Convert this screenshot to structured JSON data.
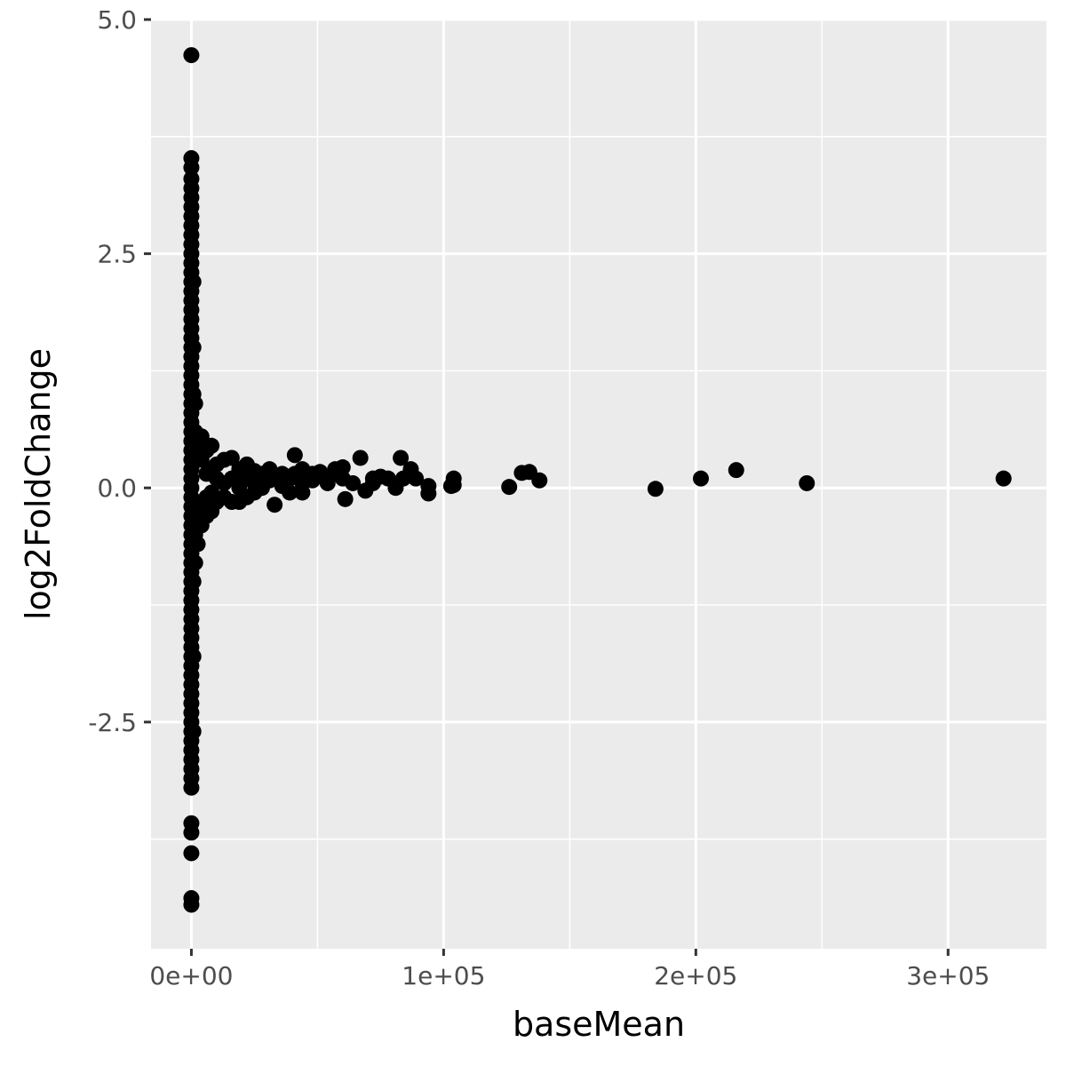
{
  "chart_data": {
    "type": "scatter",
    "title": "",
    "xlabel": "baseMean",
    "ylabel": "log2FoldChange",
    "xlim": [
      -16000,
      339000
    ],
    "ylim": [
      -4.92,
      5.0
    ],
    "x_ticks": [
      0,
      100000,
      200000,
      300000
    ],
    "x_tick_labels": [
      "0e+00",
      "1e+05",
      "2e+05",
      "3e+05"
    ],
    "y_ticks": [
      5.0,
      2.5,
      0.0,
      -2.5
    ],
    "y_tick_labels": [
      "5.0",
      "2.5",
      "0.0",
      "-2.5"
    ],
    "grid": true,
    "legend": "none",
    "colors": {
      "panel": "#ebebeb",
      "grid": "#ffffff",
      "point": "#000000",
      "tick": "#333333",
      "tick_text": "#4d4d4d"
    },
    "series": [
      {
        "points": [
          [
            0,
            4.62
          ],
          [
            0,
            3.52
          ],
          [
            0,
            3.42
          ],
          [
            0,
            3.3
          ],
          [
            0,
            3.2
          ],
          [
            0,
            3.1
          ],
          [
            0,
            3.0
          ],
          [
            0,
            2.9
          ],
          [
            0,
            2.8
          ],
          [
            0,
            2.7
          ],
          [
            0,
            2.6
          ],
          [
            0,
            2.5
          ],
          [
            0,
            2.4
          ],
          [
            0,
            2.3
          ],
          [
            0,
            2.2
          ],
          [
            0,
            2.1
          ],
          [
            0,
            2.0
          ],
          [
            0,
            1.9
          ],
          [
            0,
            1.8
          ],
          [
            0,
            1.7
          ],
          [
            0,
            1.6
          ],
          [
            0,
            1.5
          ],
          [
            0,
            1.4
          ],
          [
            0,
            1.3
          ],
          [
            0,
            1.2
          ],
          [
            0,
            1.1
          ],
          [
            0,
            1.0
          ],
          [
            0,
            0.9
          ],
          [
            0,
            0.8
          ],
          [
            0,
            0.7
          ],
          [
            0,
            0.6
          ],
          [
            0,
            0.5
          ],
          [
            0,
            0.4
          ],
          [
            0,
            0.3
          ],
          [
            0,
            0.2
          ],
          [
            0,
            0.1
          ],
          [
            0,
            0.0
          ],
          [
            0,
            -0.1
          ],
          [
            0,
            -0.2
          ],
          [
            0,
            -0.3
          ],
          [
            0,
            -0.4
          ],
          [
            0,
            -0.5
          ],
          [
            0,
            -0.6
          ],
          [
            0,
            -0.7
          ],
          [
            0,
            -0.8
          ],
          [
            0,
            -0.9
          ],
          [
            0,
            -1.0
          ],
          [
            0,
            -1.1
          ],
          [
            0,
            -1.2
          ],
          [
            0,
            -1.3
          ],
          [
            0,
            -1.4
          ],
          [
            0,
            -1.5
          ],
          [
            0,
            -1.6
          ],
          [
            0,
            -1.7
          ],
          [
            0,
            -1.8
          ],
          [
            0,
            -1.9
          ],
          [
            0,
            -2.0
          ],
          [
            0,
            -2.1
          ],
          [
            0,
            -2.2
          ],
          [
            0,
            -2.3
          ],
          [
            0,
            -2.4
          ],
          [
            0,
            -2.5
          ],
          [
            0,
            -2.6
          ],
          [
            0,
            -2.7
          ],
          [
            0,
            -2.8
          ],
          [
            0,
            -2.9
          ],
          [
            0,
            -3.0
          ],
          [
            0,
            -3.1
          ],
          [
            0,
            -3.2
          ],
          [
            0,
            -3.58
          ],
          [
            0,
            -3.68
          ],
          [
            0,
            -3.9
          ],
          [
            0,
            -4.38
          ],
          [
            0,
            -4.45
          ],
          [
            800,
            2.2
          ],
          [
            800,
            1.5
          ],
          [
            800,
            1.0
          ],
          [
            800,
            -1.0
          ],
          [
            800,
            -1.8
          ],
          [
            800,
            -2.6
          ],
          [
            1500,
            0.9
          ],
          [
            1500,
            0.6
          ],
          [
            1500,
            -0.5
          ],
          [
            1500,
            -0.8
          ],
          [
            2500,
            0.5
          ],
          [
            2500,
            0.3
          ],
          [
            2500,
            -0.3
          ],
          [
            2500,
            -0.6
          ],
          [
            4000,
            0.55
          ],
          [
            4000,
            0.3
          ],
          [
            4000,
            -0.2
          ],
          [
            4000,
            -0.4
          ],
          [
            6000,
            0.4
          ],
          [
            6000,
            0.15
          ],
          [
            6000,
            -0.1
          ],
          [
            6000,
            -0.3
          ],
          [
            8000,
            0.45
          ],
          [
            8000,
            0.2
          ],
          [
            8000,
            -0.05
          ],
          [
            8000,
            -0.25
          ],
          [
            10000,
            0.25
          ],
          [
            10000,
            0.1
          ],
          [
            10000,
            -0.15
          ],
          [
            13000,
            0.3
          ],
          [
            13000,
            0.05
          ],
          [
            13000,
            -0.1
          ],
          [
            16000,
            0.32
          ],
          [
            16000,
            0.1
          ],
          [
            16000,
            -0.15
          ],
          [
            19000,
            0.2
          ],
          [
            19000,
            0.0
          ],
          [
            19000,
            -0.15
          ],
          [
            22000,
            0.25
          ],
          [
            22000,
            0.1
          ],
          [
            22000,
            -0.1
          ],
          [
            25000,
            0.18
          ],
          [
            25000,
            0.05
          ],
          [
            25000,
            -0.05
          ],
          [
            28000,
            0.15
          ],
          [
            28000,
            0.0
          ],
          [
            31000,
            0.2
          ],
          [
            31000,
            0.08
          ],
          [
            33000,
            -0.18
          ],
          [
            36000,
            0.15
          ],
          [
            36000,
            0.02
          ],
          [
            39000,
            0.1
          ],
          [
            39000,
            -0.05
          ],
          [
            41000,
            0.35
          ],
          [
            41000,
            0.15
          ],
          [
            44000,
            0.2
          ],
          [
            44000,
            0.05
          ],
          [
            44000,
            -0.05
          ],
          [
            48000,
            0.15
          ],
          [
            48000,
            0.08
          ],
          [
            51000,
            0.17
          ],
          [
            54000,
            0.1
          ],
          [
            54000,
            0.05
          ],
          [
            57000,
            0.2
          ],
          [
            60000,
            0.22
          ],
          [
            60000,
            0.1
          ],
          [
            61000,
            -0.12
          ],
          [
            64000,
            0.05
          ],
          [
            67000,
            0.32
          ],
          [
            69000,
            -0.03
          ],
          [
            72000,
            0.1
          ],
          [
            72000,
            0.05
          ],
          [
            75000,
            0.12
          ],
          [
            78000,
            0.1
          ],
          [
            81000,
            0.0
          ],
          [
            83000,
            0.32
          ],
          [
            84000,
            0.1
          ],
          [
            87000,
            0.2
          ],
          [
            89000,
            0.1
          ],
          [
            94000,
            0.02
          ],
          [
            94000,
            -0.06
          ],
          [
            103000,
            0.02
          ],
          [
            104000,
            0.1
          ],
          [
            104000,
            0.03
          ],
          [
            126000,
            0.01
          ],
          [
            131000,
            0.16
          ],
          [
            134000,
            0.17
          ],
          [
            138000,
            0.08
          ],
          [
            184000,
            -0.01
          ],
          [
            202000,
            0.1
          ],
          [
            216000,
            0.19
          ],
          [
            244000,
            0.05
          ],
          [
            322000,
            0.1
          ]
        ]
      }
    ]
  }
}
